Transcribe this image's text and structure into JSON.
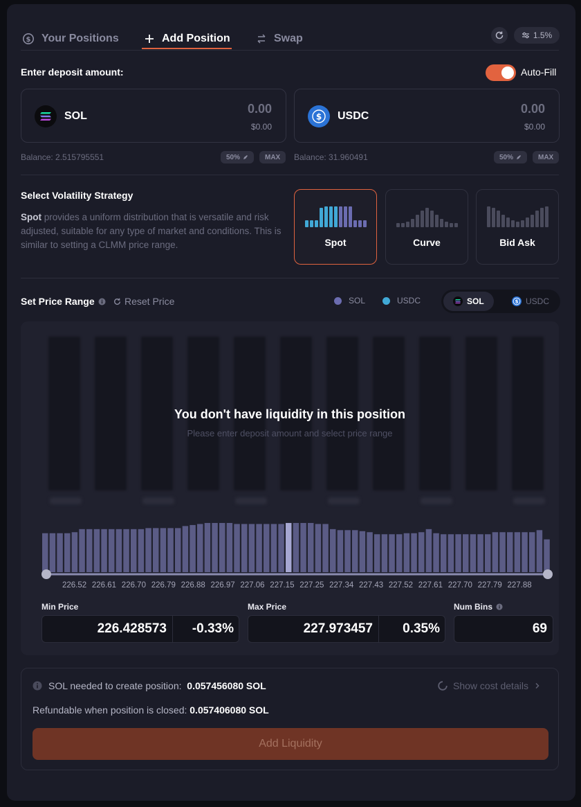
{
  "tabs": [
    {
      "label": "Your Positions",
      "icon": "dollar-circle-icon"
    },
    {
      "label": "Add Position",
      "icon": "plus-icon"
    },
    {
      "label": "Swap",
      "icon": "swap-icon"
    }
  ],
  "header": {
    "slippage": "1.5%"
  },
  "deposit": {
    "title": "Enter deposit amount:",
    "autofill_label": "Auto-Fill",
    "autofill_on": true,
    "tokens": [
      {
        "symbol": "SOL",
        "amount": "0.00",
        "usd": "$0.00",
        "balance": "Balance: 2.515795551",
        "half": "50%",
        "max": "MAX"
      },
      {
        "symbol": "USDC",
        "amount": "0.00",
        "usd": "$0.00",
        "balance": "Balance: 31.960491",
        "half": "50%",
        "max": "MAX"
      }
    ]
  },
  "strategy": {
    "title": "Select Volatility Strategy",
    "desc_bold": "Spot",
    "desc_rest": " provides a uniform distribution that is versatile and risk adjusted, suitable for any type of market and conditions. This is similar to setting a CLMM price range.",
    "options": [
      {
        "label": "Spot"
      },
      {
        "label": "Curve"
      },
      {
        "label": "Bid Ask"
      }
    ],
    "selected": "Spot"
  },
  "price_range": {
    "title": "Set Price Range",
    "reset_label": "Reset Price",
    "legend": [
      {
        "label": "SOL",
        "color": "#6b6cb0"
      },
      {
        "label": "USDC",
        "color": "#41a9d6"
      }
    ],
    "toggle": [
      {
        "label": "SOL"
      },
      {
        "label": "USDC"
      }
    ],
    "empty_title": "You don't have liquidity in this position",
    "empty_sub": "Please enter deposit amount and select price range",
    "min_label": "Min Price",
    "min_price": "226.428573",
    "min_pct": "-0.33%",
    "max_label": "Max Price",
    "max_price": "227.973457",
    "max_pct": "0.35%",
    "bins_label": "Num Bins",
    "num_bins": "69"
  },
  "chart_data": {
    "type": "bar",
    "title": "",
    "xlabel": "",
    "ylabel": "",
    "x_ticks": [
      "226.52",
      "226.61",
      "226.70",
      "226.79",
      "226.88",
      "226.97",
      "227.06",
      "227.15",
      "227.25",
      "227.34",
      "227.43",
      "227.52",
      "227.61",
      "227.70",
      "227.79",
      "227.88"
    ],
    "ylim": [
      0,
      1
    ],
    "values": [
      0.76,
      0.76,
      0.76,
      0.76,
      0.78,
      0.84,
      0.84,
      0.84,
      0.84,
      0.84,
      0.84,
      0.84,
      0.84,
      0.84,
      0.86,
      0.86,
      0.86,
      0.86,
      0.86,
      0.9,
      0.92,
      0.94,
      0.96,
      0.96,
      0.96,
      0.96,
      0.94,
      0.94,
      0.94,
      0.94,
      0.94,
      0.94,
      0.94,
      0.96,
      0.96,
      0.96,
      0.96,
      0.94,
      0.94,
      0.84,
      0.82,
      0.82,
      0.82,
      0.8,
      0.78,
      0.74,
      0.74,
      0.74,
      0.74,
      0.76,
      0.76,
      0.78,
      0.84,
      0.76,
      0.74,
      0.74,
      0.74,
      0.74,
      0.74,
      0.74,
      0.74,
      0.78,
      0.78,
      0.78,
      0.78,
      0.78,
      0.78,
      0.82,
      0.64
    ],
    "highlight_index": 33
  },
  "cost": {
    "needed_label": "SOL needed to create position:",
    "needed_value": "0.057456080 SOL",
    "refund_label": "Refundable when position is closed:",
    "refund_value": "0.057406080 SOL",
    "details_label": "Show cost details",
    "button_label": "Add Liquidity"
  },
  "colors": {
    "accent": "#e2633f",
    "sol_bar": "#6b6cb0",
    "usdc_bar": "#41a9d6",
    "bin_bar": "#5b5c86",
    "bin_highlight": "#a6a7d2"
  }
}
